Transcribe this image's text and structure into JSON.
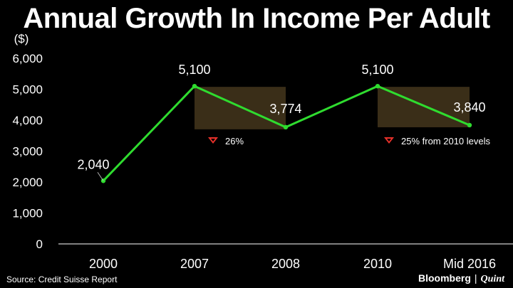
{
  "chart_data": {
    "type": "line",
    "title": "Annual Growth In Income Per Adult",
    "ylabel": "($)",
    "categories": [
      "2000",
      "2007",
      "2008",
      "2010",
      "Mid 2016"
    ],
    "series": [
      {
        "values": [
          2040,
          5100,
          3774,
          5100,
          3840
        ],
        "color": "#2fdc2f"
      }
    ],
    "data_labels": [
      "2,040",
      "5,100",
      "3,774",
      "5,100",
      "3,840"
    ],
    "ylim": [
      0,
      6000
    ],
    "yticks": [
      0,
      1000,
      2000,
      3000,
      4000,
      5000,
      6000
    ],
    "ytick_labels": [
      "0",
      "1,000",
      "2,000",
      "3,000",
      "4,000",
      "5,000",
      "6,000"
    ],
    "grid": false,
    "annotations": [
      {
        "from": 1,
        "to": 2,
        "text": "26%",
        "icon": "down-triangle-icon"
      },
      {
        "from": 3,
        "to": 4,
        "text": "25% from 2010 levels",
        "icon": "down-triangle-icon"
      }
    ],
    "colors": {
      "line": "#2fdc2f",
      "band": "#3a2e18",
      "down_arrow": "#e8312a"
    }
  },
  "source": "Source: Credit Suisse Report",
  "brand": {
    "name": "Bloomberg",
    "separator": "|",
    "partner": "Quint"
  }
}
